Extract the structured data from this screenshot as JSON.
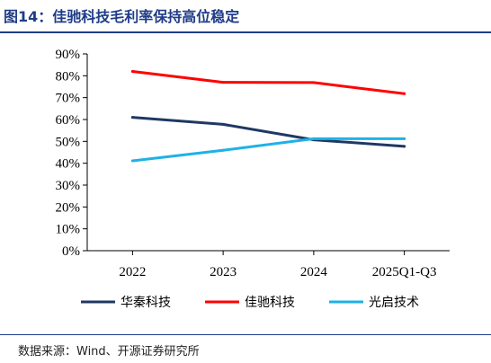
{
  "figure": {
    "title": "图14：佳驰科技毛利率保持高位稳定",
    "source": "数据来源：Wind、开源证券研究所"
  },
  "colors": {
    "title": "#1f3c88",
    "axis": "#000000"
  },
  "chart_data": {
    "type": "line",
    "x": [
      "2022",
      "2023",
      "2024",
      "2025Q1-Q3"
    ],
    "ylim": [
      0,
      90
    ],
    "yticks": [
      0,
      10,
      20,
      30,
      40,
      50,
      60,
      70,
      80,
      90
    ],
    "ytick_labels": [
      "0%",
      "10%",
      "20%",
      "30%",
      "40%",
      "50%",
      "60%",
      "70%",
      "80%",
      "90%"
    ],
    "grid": false,
    "legend_position": "bottom",
    "series": [
      {
        "name": "华秦科技",
        "color": "#1f3864",
        "values": [
          61.0,
          57.8,
          50.7,
          47.7
        ]
      },
      {
        "name": "佳驰科技",
        "color": "#ff0000",
        "values": [
          82.0,
          77.0,
          76.9,
          71.8
        ]
      },
      {
        "name": "光启技术",
        "color": "#1fb1e6",
        "values": [
          41.1,
          45.9,
          51.2,
          51.2
        ]
      }
    ]
  }
}
